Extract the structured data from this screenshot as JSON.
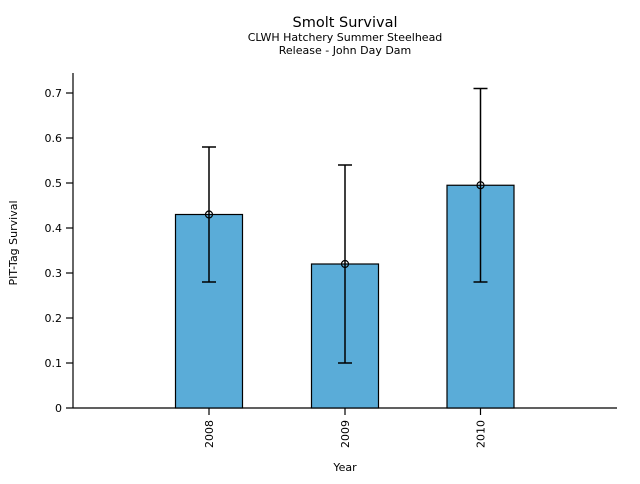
{
  "chart_data": {
    "type": "bar",
    "title": "Smolt Survival",
    "subtitle_line1": "CLWH Hatchery Summer Steelhead",
    "subtitle_line2": "Release - John Day Dam",
    "xlabel": "Year",
    "ylabel": "PIT-Tag Survival",
    "categories": [
      "2008",
      "2009",
      "2010"
    ],
    "values": [
      0.43,
      0.32,
      0.495
    ],
    "error_low": [
      0.28,
      0.1,
      0.28
    ],
    "error_high": [
      0.58,
      0.54,
      0.71
    ],
    "y_tick_values": [
      0,
      0.1,
      0.2,
      0.3,
      0.4,
      0.5,
      0.6,
      0.7
    ],
    "y_tick_labels": [
      "0",
      "0.1",
      "0.2",
      "0.3",
      "0.4",
      "0.5",
      "0.6",
      "0.7"
    ],
    "ylim": [
      0,
      0.745
    ],
    "bar_color": "#5AACD8",
    "bar_edge_color": "#000000",
    "error_bar_color": "#000000",
    "marker": "open-circle",
    "grid": false,
    "legend": false
  }
}
